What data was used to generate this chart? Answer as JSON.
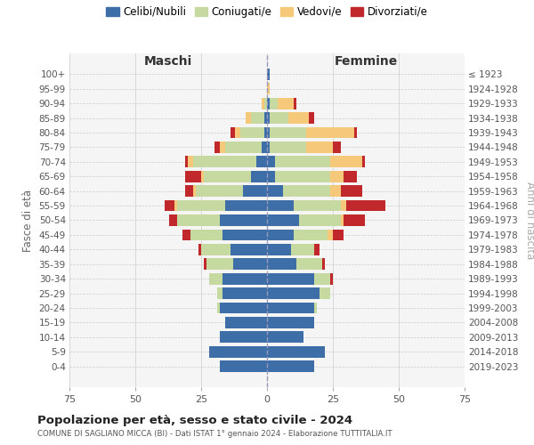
{
  "age_groups": [
    "100+",
    "95-99",
    "90-94",
    "85-89",
    "80-84",
    "75-79",
    "70-74",
    "65-69",
    "60-64",
    "55-59",
    "50-54",
    "45-49",
    "40-44",
    "35-39",
    "30-34",
    "25-29",
    "20-24",
    "15-19",
    "10-14",
    "5-9",
    "0-4"
  ],
  "birth_years": [
    "≤ 1923",
    "1924-1928",
    "1929-1933",
    "1934-1938",
    "1939-1943",
    "1944-1948",
    "1949-1953",
    "1954-1958",
    "1959-1963",
    "1964-1968",
    "1969-1973",
    "1974-1978",
    "1979-1983",
    "1984-1988",
    "1989-1993",
    "1994-1998",
    "1999-2003",
    "2004-2008",
    "2009-2013",
    "2014-2018",
    "2019-2023"
  ],
  "colors": {
    "celibi": "#3d6ea8",
    "coniugati": "#c5d9a0",
    "vedovi": "#f5c87a",
    "divorziati": "#c0282c"
  },
  "maschi": {
    "celibi": [
      0,
      0,
      0,
      1,
      1,
      2,
      4,
      6,
      9,
      16,
      18,
      17,
      14,
      13,
      17,
      17,
      18,
      16,
      18,
      22,
      18
    ],
    "coniugati": [
      0,
      0,
      1,
      5,
      9,
      14,
      24,
      18,
      18,
      18,
      16,
      12,
      11,
      10,
      5,
      2,
      1,
      0,
      0,
      0,
      0
    ],
    "vedovi": [
      0,
      0,
      1,
      2,
      2,
      2,
      2,
      1,
      1,
      1,
      0,
      0,
      0,
      0,
      0,
      0,
      0,
      0,
      0,
      0,
      0
    ],
    "divorziati": [
      0,
      0,
      0,
      0,
      2,
      2,
      1,
      6,
      3,
      4,
      3,
      3,
      1,
      1,
      0,
      0,
      0,
      0,
      0,
      0,
      0
    ]
  },
  "femmine": {
    "celibi": [
      1,
      0,
      1,
      1,
      1,
      1,
      3,
      3,
      6,
      10,
      12,
      10,
      9,
      11,
      18,
      20,
      18,
      18,
      14,
      22,
      18
    ],
    "coniugati": [
      0,
      0,
      3,
      7,
      14,
      14,
      21,
      21,
      18,
      18,
      16,
      13,
      9,
      10,
      6,
      4,
      1,
      0,
      0,
      0,
      0
    ],
    "vedovi": [
      0,
      1,
      6,
      8,
      18,
      10,
      12,
      5,
      4,
      2,
      1,
      2,
      0,
      0,
      0,
      0,
      0,
      0,
      0,
      0,
      0
    ],
    "divorziati": [
      0,
      0,
      1,
      2,
      1,
      3,
      1,
      5,
      8,
      15,
      8,
      4,
      2,
      1,
      1,
      0,
      0,
      0,
      0,
      0,
      0
    ]
  },
  "xlim": 75,
  "title": "Popolazione per età, sesso e stato civile - 2024",
  "subtitle": "COMUNE DI SAGLIANO MICCA (BI) - Dati ISTAT 1° gennaio 2024 - Elaborazione TUTTITALIA.IT",
  "xlabel_left": "Maschi",
  "xlabel_right": "Femmine",
  "ylabel_left": "Fasce di età",
  "ylabel_right": "Anni di nascita",
  "legend_labels": [
    "Celibi/Nubili",
    "Coniugati/e",
    "Vedovi/e",
    "Divorziati/e"
  ],
  "bg_color": "#f5f5f5",
  "grid_color": "#cccccc"
}
